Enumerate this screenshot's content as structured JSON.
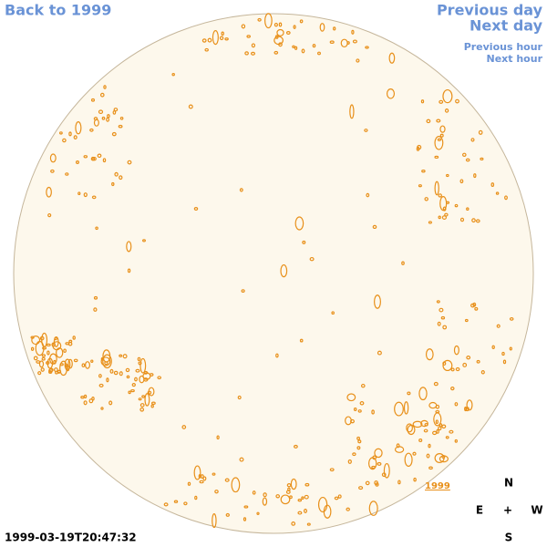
{
  "navigation": {
    "back": "Back to 1999",
    "previous_day": "Previous day",
    "next_day": "Next day",
    "previous_hour": "Previous hour",
    "next_hour": "Next hour",
    "year_link": "1999"
  },
  "timestamp": "1999-03-19T20:47:32",
  "compass": {
    "north": "N",
    "east": "E",
    "center": "+",
    "west": "W",
    "south": "S"
  }
}
